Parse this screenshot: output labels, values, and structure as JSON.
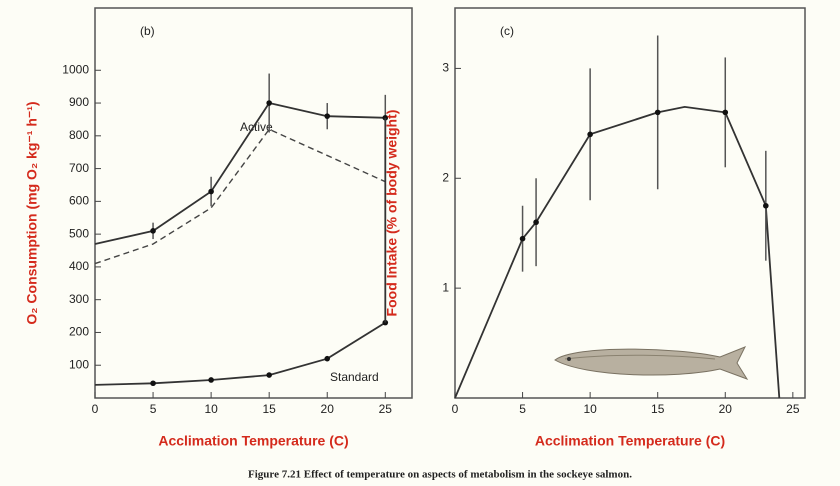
{
  "chart_data": [
    {
      "type": "line",
      "panel": "(b)",
      "y_label": "O₂ Consumption (mg O₂ kg⁻¹ h⁻¹)",
      "x_label": "Acclimation Temperature (C)",
      "xlim": [
        0,
        27.3
      ],
      "xticks": [
        0,
        5,
        10,
        15,
        20,
        25
      ],
      "ylim": [
        0,
        1190
      ],
      "yticks": [
        100,
        200,
        300,
        400,
        500,
        600,
        700,
        800,
        900,
        1000
      ],
      "annotations": [
        "Active",
        "Standard"
      ],
      "series": [
        {
          "x": [
            0,
            5,
            10,
            15,
            20,
            25
          ],
          "values": [
            470,
            510,
            630,
            900,
            860,
            855
          ],
          "errors": [
            null,
            25,
            45,
            90,
            40,
            70
          ],
          "markers": [
            false,
            true,
            true,
            true,
            true,
            true
          ],
          "color": "#333333",
          "dash": false
        },
        {
          "x": [
            0,
            5,
            10,
            15,
            25
          ],
          "values": [
            410,
            470,
            580,
            820,
            660
          ],
          "color": "#444444",
          "dash": true
        },
        {
          "x": [
            0,
            5,
            10,
            15,
            20,
            25
          ],
          "values": [
            40,
            45,
            55,
            70,
            120,
            230
          ],
          "markers": [
            false,
            true,
            true,
            true,
            true,
            true
          ],
          "color": "#333333",
          "dash": false
        },
        {
          "x": [
            25,
            25
          ],
          "values": [
            855,
            230
          ],
          "color": "#333333",
          "dash": false
        }
      ]
    },
    {
      "type": "line",
      "panel": "(c)",
      "y_label": "Food Intake (% of body weight)",
      "x_label": "Acclimation Temperature (C)",
      "xlim": [
        0,
        25.9
      ],
      "xticks": [
        0,
        5,
        10,
        15,
        20,
        25
      ],
      "ylim": [
        0,
        3.55
      ],
      "yticks": [
        1,
        2,
        3
      ],
      "annotations": [],
      "series": [
        {
          "x": [
            0,
            5,
            6,
            10,
            15,
            17,
            20,
            23,
            24
          ],
          "values": [
            0,
            1.45,
            1.6,
            2.4,
            2.6,
            2.65,
            2.6,
            1.75,
            0
          ],
          "markers": [
            false,
            true,
            true,
            true,
            true,
            false,
            true,
            true,
            false
          ],
          "errors": [
            null,
            0.3,
            0.4,
            0.6,
            0.7,
            null,
            0.5,
            0.5,
            null
          ],
          "color": "#333333",
          "dash": false
        }
      ]
    }
  ],
  "caption": "Figure 7.21 Effect of temperature on aspects of metabolism in the sockeye salmon."
}
